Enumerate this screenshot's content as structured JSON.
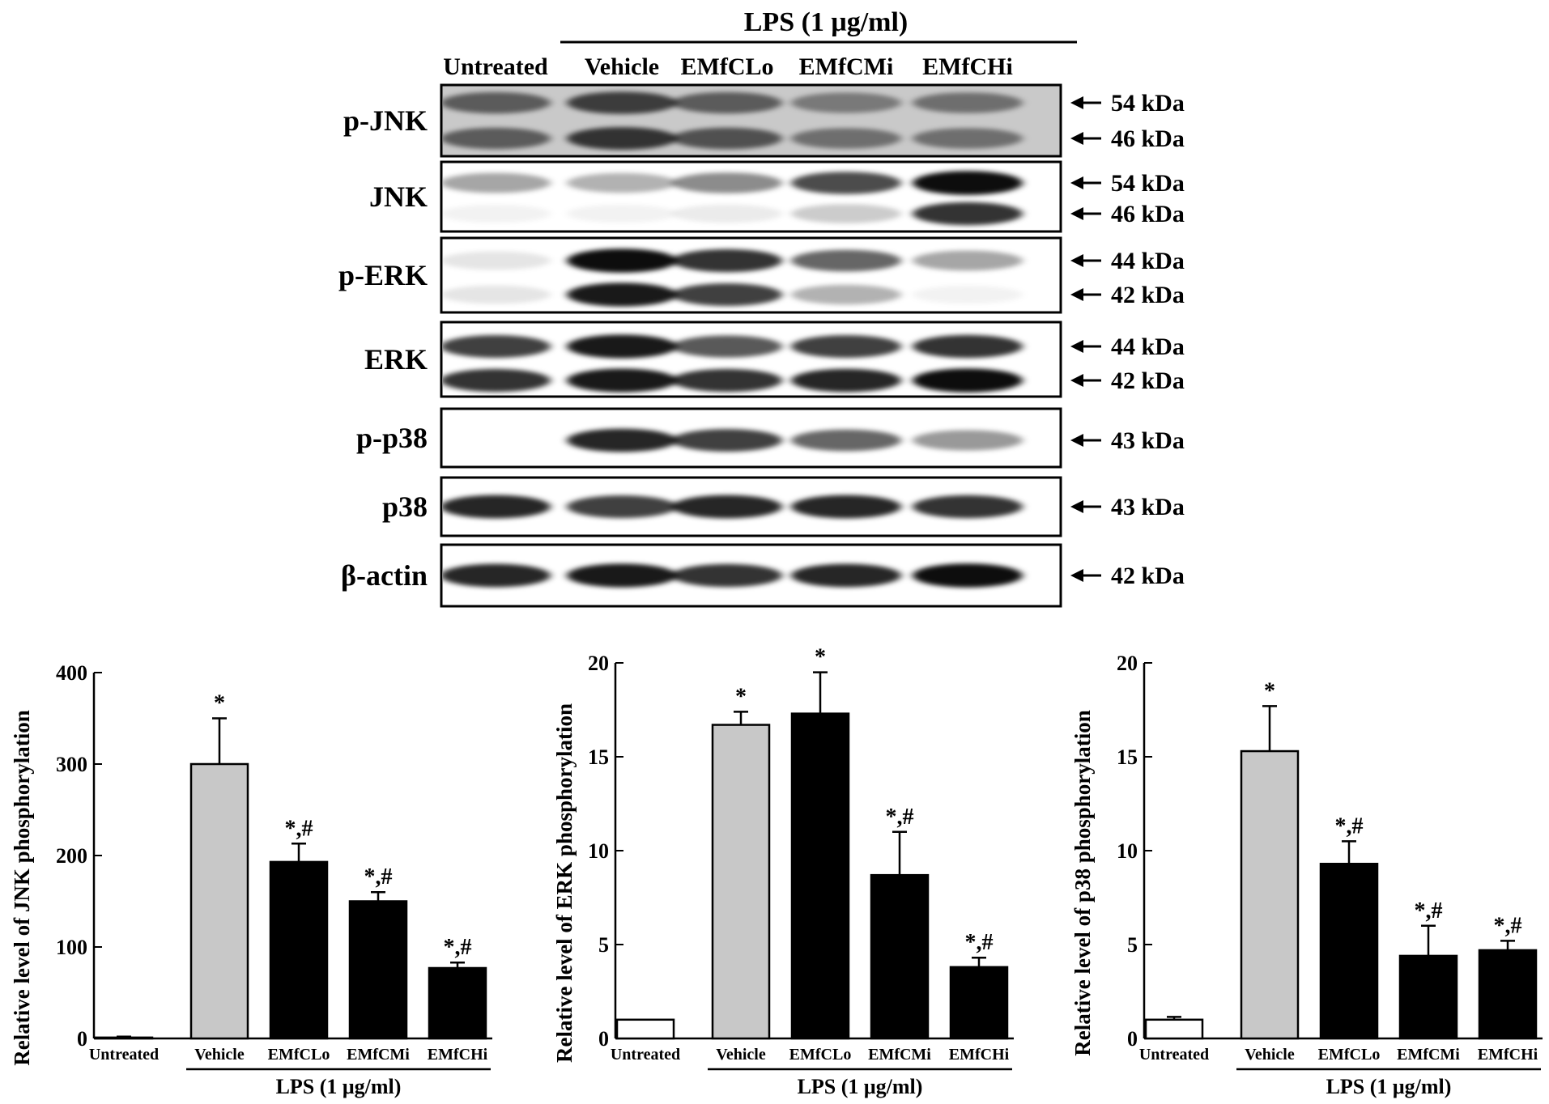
{
  "blot": {
    "treatment_header": "LPS (1 μg/ml)",
    "lanes": [
      "Untreated",
      "Vehicle",
      "EMfCLo",
      "EMfCMi",
      "EMfCHi"
    ],
    "rows": [
      {
        "protein": "p-JNK",
        "markers": [
          "54 kDa",
          "46 kDa"
        ],
        "intensity": [
          [
            0.55,
            0.7,
            0.55,
            0.4,
            0.45
          ],
          [
            0.55,
            0.75,
            0.6,
            0.45,
            0.45
          ]
        ],
        "background": 0.45
      },
      {
        "protein": "JNK",
        "markers": [
          "54 kDa",
          "46 kDa"
        ],
        "intensity": [
          [
            0.35,
            0.3,
            0.45,
            0.7,
            0.95
          ],
          [
            0.05,
            0.05,
            0.08,
            0.2,
            0.8
          ]
        ],
        "background": 0.0
      },
      {
        "protein": "p-ERK",
        "markers": [
          "44 kDa",
          "42 kDa"
        ],
        "intensity": [
          [
            0.1,
            0.95,
            0.8,
            0.6,
            0.35
          ],
          [
            0.1,
            0.9,
            0.75,
            0.3,
            0.05
          ]
        ],
        "background": 0.0
      },
      {
        "protein": "ERK",
        "markers": [
          "44 kDa",
          "42 kDa"
        ],
        "intensity": [
          [
            0.75,
            0.9,
            0.65,
            0.75,
            0.8
          ],
          [
            0.8,
            0.9,
            0.8,
            0.85,
            0.95
          ]
        ],
        "background": 0.0
      },
      {
        "protein": "p-p38",
        "markers": [
          "43 kDa"
        ],
        "intensity": [
          [
            0.0,
            0.85,
            0.75,
            0.6,
            0.4
          ]
        ],
        "background": 0.0
      },
      {
        "protein": "p38",
        "markers": [
          "43 kDa"
        ],
        "intensity": [
          [
            0.85,
            0.75,
            0.85,
            0.85,
            0.8
          ]
        ],
        "background": 0.0
      },
      {
        "protein": "β-actin",
        "markers": [
          "42 kDa"
        ],
        "intensity": [
          [
            0.85,
            0.9,
            0.8,
            0.85,
            0.95
          ]
        ],
        "background": 0.0
      }
    ]
  },
  "chart_data": [
    {
      "type": "bar",
      "ylabel": "Relative level of JNK phosphorylation",
      "categories": [
        "Untreated",
        "Vehicle",
        "EMfCLo",
        "EMfCMi",
        "EMfCHi"
      ],
      "values": [
        1,
        300,
        193,
        150,
        77
      ],
      "errors": [
        1,
        50,
        20,
        10,
        6
      ],
      "annotations": [
        "",
        "*",
        "*,#",
        "*,#",
        "*,#"
      ],
      "yticks": [
        0,
        100,
        200,
        300,
        400
      ],
      "ylim": [
        0,
        400
      ],
      "group_label": "LPS (1 μg/ml)",
      "colors": [
        "#ffffff",
        "#c8c8c8",
        "#000000",
        "#000000",
        "#000000"
      ]
    },
    {
      "type": "bar",
      "ylabel": "Relative level of ERK phosphorylation",
      "categories": [
        "Untreated",
        "Vehicle",
        "EMfCLo",
        "EMfCMi",
        "EMfCHi"
      ],
      "values": [
        1,
        16.7,
        17.3,
        8.7,
        3.8
      ],
      "errors": [
        0,
        0.7,
        2.2,
        2.3,
        0.5
      ],
      "annotations": [
        "",
        "*",
        "*",
        "*,#",
        "*,#"
      ],
      "yticks": [
        0,
        5,
        10,
        15,
        20
      ],
      "ylim": [
        0,
        20
      ],
      "group_label": "LPS (1 μg/ml)",
      "colors": [
        "#ffffff",
        "#c8c8c8",
        "#000000",
        "#000000",
        "#000000"
      ]
    },
    {
      "type": "bar",
      "ylabel": "Relative level of p38 phosphorylation",
      "categories": [
        "Untreated",
        "Vehicle",
        "EMfCLo",
        "EMfCMi",
        "EMfCHi"
      ],
      "values": [
        1,
        15.3,
        9.3,
        4.4,
        4.7
      ],
      "errors": [
        0.15,
        2.4,
        1.2,
        1.6,
        0.5
      ],
      "annotations": [
        "",
        "*",
        "*,#",
        "*,#",
        "*,#"
      ],
      "yticks": [
        0,
        5,
        10,
        15,
        20
      ],
      "ylim": [
        0,
        20
      ],
      "group_label": "LPS (1 μg/ml)",
      "colors": [
        "#ffffff",
        "#c8c8c8",
        "#000000",
        "#000000",
        "#000000"
      ]
    }
  ]
}
